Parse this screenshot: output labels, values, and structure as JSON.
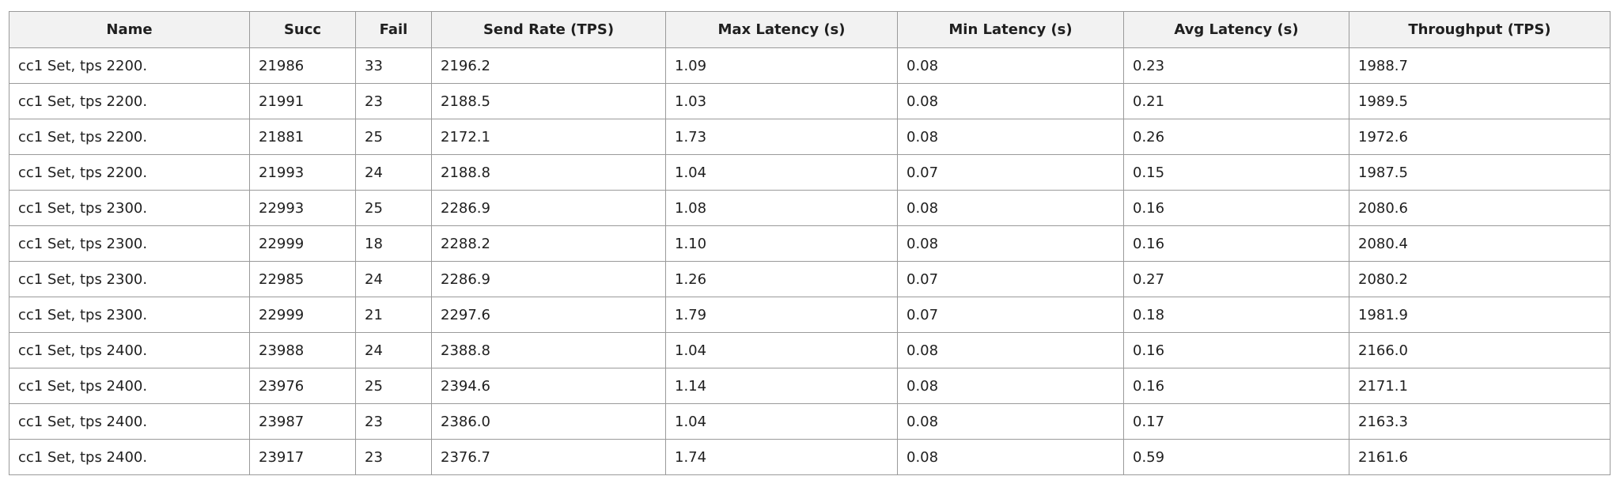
{
  "table": {
    "columns": [
      "Name",
      "Succ",
      "Fail",
      "Send Rate (TPS)",
      "Max Latency (s)",
      "Min Latency (s)",
      "Avg Latency (s)",
      "Throughput (TPS)"
    ],
    "rows": [
      [
        "cc1 Set, tps 2200.",
        "21986",
        "33",
        "2196.2",
        "1.09",
        "0.08",
        "0.23",
        "1988.7"
      ],
      [
        "cc1 Set, tps 2200.",
        "21991",
        "23",
        "2188.5",
        "1.03",
        "0.08",
        "0.21",
        "1989.5"
      ],
      [
        "cc1 Set, tps 2200.",
        "21881",
        "25",
        "2172.1",
        "1.73",
        "0.08",
        "0.26",
        "1972.6"
      ],
      [
        "cc1 Set, tps 2200.",
        "21993",
        "24",
        "2188.8",
        "1.04",
        "0.07",
        "0.15",
        "1987.5"
      ],
      [
        "cc1 Set, tps 2300.",
        "22993",
        "25",
        "2286.9",
        "1.08",
        "0.08",
        "0.16",
        "2080.6"
      ],
      [
        "cc1 Set, tps 2300.",
        "22999",
        "18",
        "2288.2",
        "1.10",
        "0.08",
        "0.16",
        "2080.4"
      ],
      [
        "cc1 Set, tps 2300.",
        "22985",
        "24",
        "2286.9",
        "1.26",
        "0.07",
        "0.27",
        "2080.2"
      ],
      [
        "cc1 Set, tps 2300.",
        "22999",
        "21",
        "2297.6",
        "1.79",
        "0.07",
        "0.18",
        "1981.9"
      ],
      [
        "cc1 Set, tps 2400.",
        "23988",
        "24",
        "2388.8",
        "1.04",
        "0.08",
        "0.16",
        "2166.0"
      ],
      [
        "cc1 Set, tps 2400.",
        "23976",
        "25",
        "2394.6",
        "1.14",
        "0.08",
        "0.16",
        "2171.1"
      ],
      [
        "cc1 Set, tps 2400.",
        "23987",
        "23",
        "2386.0",
        "1.04",
        "0.08",
        "0.17",
        "2163.3"
      ],
      [
        "cc1 Set, tps 2400.",
        "23917",
        "23",
        "2376.7",
        "1.74",
        "0.08",
        "0.59",
        "2161.6"
      ]
    ]
  }
}
